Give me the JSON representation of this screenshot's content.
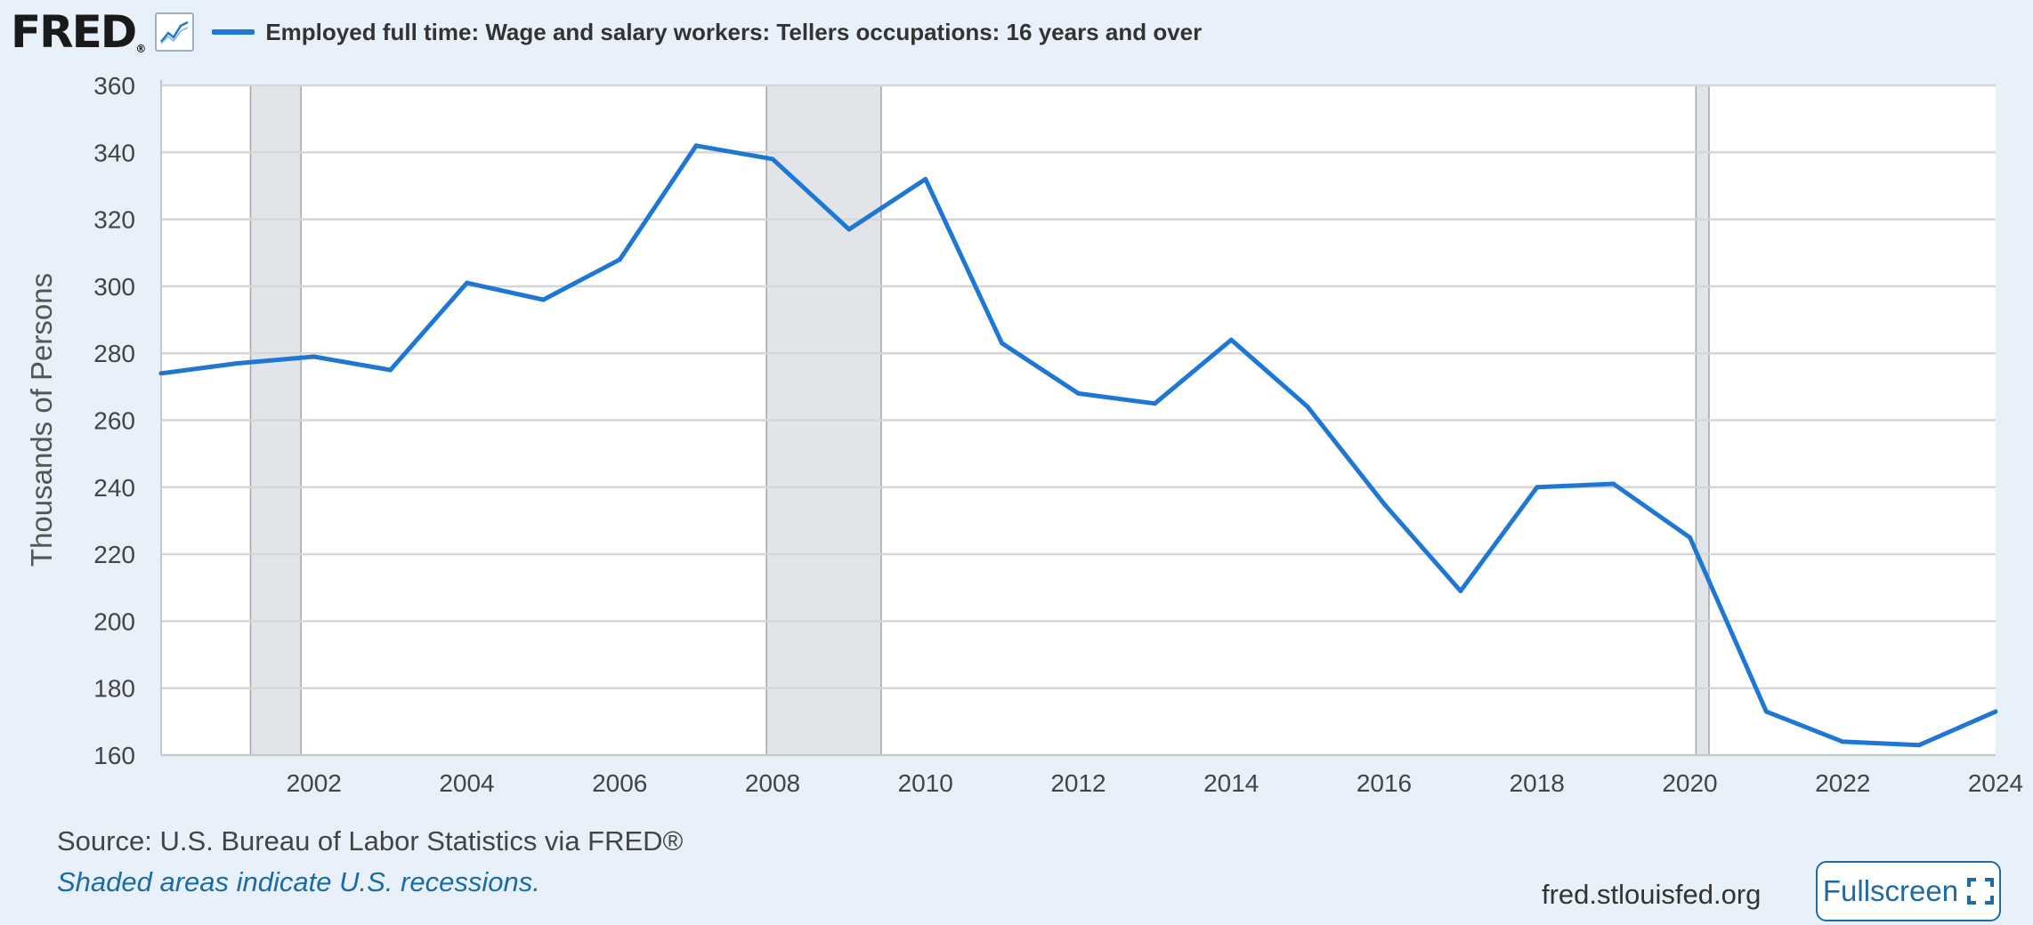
{
  "header": {
    "logo_text": "FRED",
    "logo_mark": "®",
    "logo_icon": "chart-line-icon",
    "series_title": "Employed full time: Wage and salary workers: Tellers occupations: 16 years and over"
  },
  "chart_data": {
    "type": "line",
    "title": "Employed full time: Wage and salary workers: Tellers occupations: 16 years and over",
    "xlabel": "",
    "ylabel": "Thousands of Persons",
    "xlim": [
      2000,
      2024
    ],
    "ylim": [
      160,
      360
    ],
    "yticks": [
      160,
      180,
      200,
      220,
      240,
      260,
      280,
      300,
      320,
      340,
      360
    ],
    "xticks": [
      2002,
      2004,
      2006,
      2008,
      2010,
      2012,
      2014,
      2016,
      2018,
      2020,
      2022,
      2024
    ],
    "grid": true,
    "legend": "top-left",
    "series": [
      {
        "name": "Employed full time: Wage and salary workers: Tellers occupations: 16 years and over",
        "color": "#1f77d4",
        "x": [
          2000,
          2001,
          2002,
          2003,
          2004,
          2005,
          2006,
          2007,
          2008,
          2009,
          2010,
          2011,
          2012,
          2013,
          2014,
          2015,
          2016,
          2017,
          2018,
          2019,
          2020,
          2021,
          2022,
          2023,
          2024
        ],
        "values": [
          274,
          277,
          279,
          275,
          301,
          296,
          308,
          342,
          338,
          317,
          332,
          283,
          268,
          265,
          284,
          264,
          235,
          209,
          240,
          241,
          225,
          173,
          164,
          163,
          173
        ]
      }
    ],
    "recessions": [
      [
        2001.17,
        2001.83
      ],
      [
        2007.92,
        2009.42
      ],
      [
        2020.08,
        2020.25
      ]
    ]
  },
  "footer": {
    "source": "Source: U.S. Bureau of Labor Statistics via FRED®",
    "note": "Shaded areas indicate U.S. recessions.",
    "site": "fred.stlouisfed.org",
    "fullscreen_label": "Fullscreen",
    "fullscreen_icon": "expand-icon"
  }
}
